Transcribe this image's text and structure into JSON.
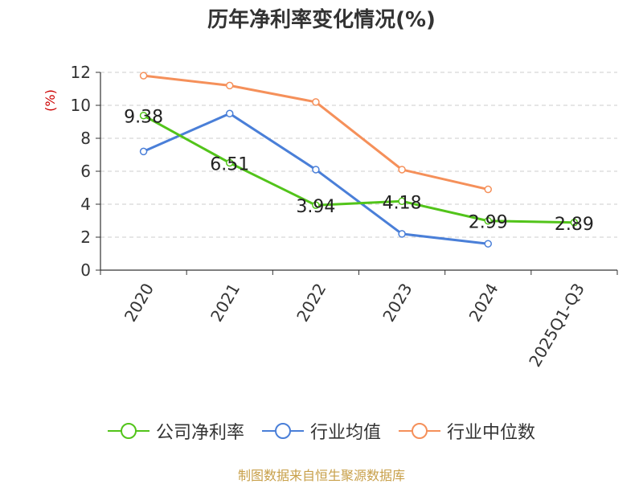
{
  "chart_data": {
    "type": "line",
    "title": "历年净利率变化情况(%)",
    "ylabel": "(%)",
    "categories": [
      "2020",
      "2021",
      "2022",
      "2023",
      "2024",
      "2025Q1-Q3"
    ],
    "ylim": [
      0,
      12
    ],
    "yticks": [
      "0",
      "2",
      "4",
      "6",
      "8",
      "10",
      "12"
    ],
    "grid": true,
    "legend_position": "bottom",
    "series": [
      {
        "name": "公司净利率",
        "color": "#52c41a",
        "values": [
          9.38,
          6.51,
          3.94,
          4.18,
          2.99,
          2.89
        ],
        "labels": [
          "9.38",
          "6.51",
          "3.94",
          "4.18",
          "2.99",
          "2.89"
        ]
      },
      {
        "name": "行业均值",
        "color": "#4a7fd8",
        "values": [
          7.2,
          9.5,
          6.1,
          2.2,
          1.6,
          null
        ]
      },
      {
        "name": "行业中位数",
        "color": "#f5905a",
        "values": [
          11.8,
          11.2,
          10.2,
          6.1,
          4.9,
          null
        ]
      }
    ]
  },
  "source_text": "制图数据来自恒生聚源数据库",
  "colors": {
    "title": "#333333",
    "axis": "#333333",
    "ylabel": "#cc0000",
    "grid": "#cccccc",
    "source": "#c8a04a"
  }
}
